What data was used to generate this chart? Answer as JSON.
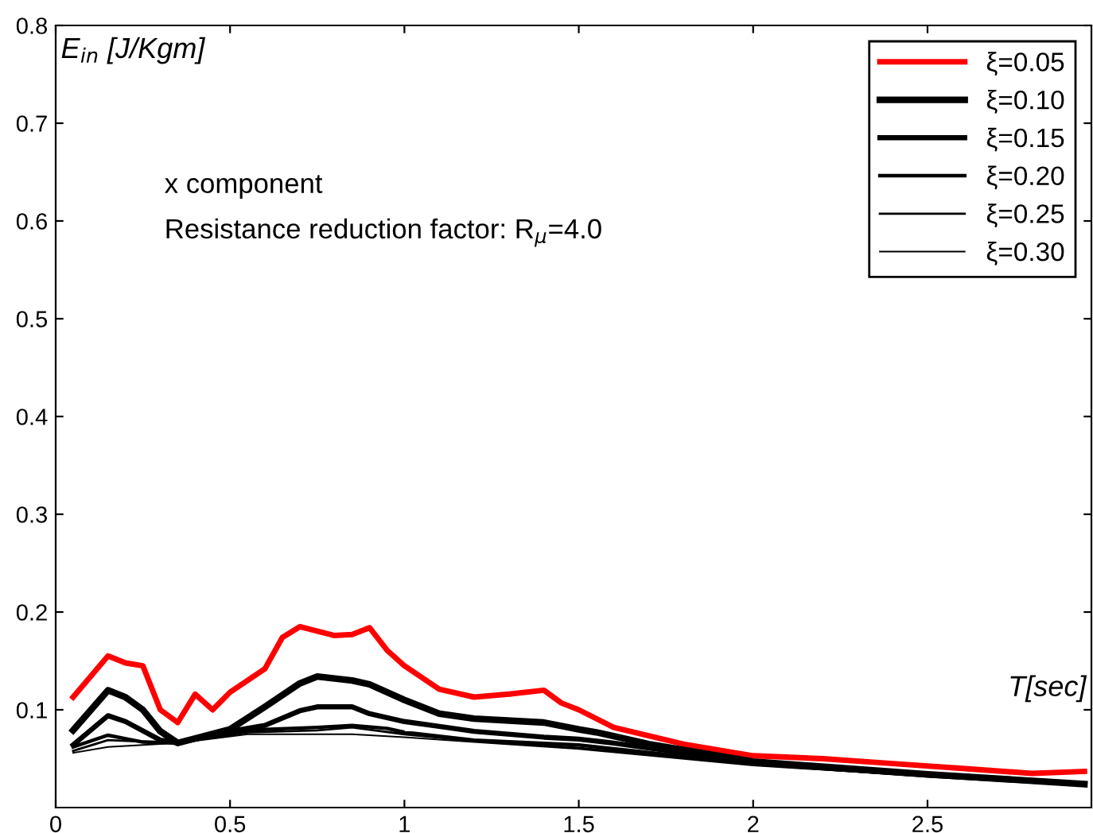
{
  "chart_data": {
    "type": "line",
    "xlabel": "T[sec]",
    "ylabel": "E$_{in}$ [J/Kgm]",
    "annotations": [
      "x component",
      "Resistance reduction factor: R$_{μ}$=4.0"
    ],
    "xlim": [
      0,
      2.97
    ],
    "ylim": [
      0,
      0.8
    ],
    "xticks": [
      0,
      0.5,
      1,
      1.5,
      2,
      2.5
    ],
    "yticks": [
      0.1,
      0.2,
      0.3,
      0.4,
      0.5,
      0.6,
      0.7,
      0.8
    ],
    "grid": false,
    "legend": "top right",
    "marker": "none",
    "line_style": "solid",
    "series": [
      {
        "name": "ξ=0.05",
        "color": "#ff0000",
        "x": [
          0.05,
          0.15,
          0.2,
          0.25,
          0.3,
          0.35,
          0.4,
          0.45,
          0.5,
          0.6,
          0.65,
          0.7,
          0.8,
          0.85,
          0.9,
          0.95,
          1.0,
          1.1,
          1.2,
          1.3,
          1.4,
          1.45,
          1.5,
          1.6,
          1.8,
          2.0,
          2.2,
          2.4,
          2.6,
          2.8,
          2.95
        ],
        "values": [
          0.113,
          0.155,
          0.148,
          0.145,
          0.1,
          0.087,
          0.116,
          0.1,
          0.118,
          0.142,
          0.174,
          0.185,
          0.176,
          0.177,
          0.184,
          0.161,
          0.145,
          0.121,
          0.113,
          0.116,
          0.12,
          0.107,
          0.1,
          0.082,
          0.065,
          0.053,
          0.05,
          0.045,
          0.04,
          0.035,
          0.037
        ]
      },
      {
        "name": "ξ=0.10",
        "color": "#000000",
        "x": [
          0.05,
          0.15,
          0.2,
          0.25,
          0.3,
          0.35,
          0.5,
          0.6,
          0.7,
          0.75,
          0.85,
          0.9,
          1.0,
          1.1,
          1.2,
          1.4,
          1.5,
          1.55,
          1.7,
          2.0,
          2.5,
          2.95
        ],
        "values": [
          0.079,
          0.12,
          0.113,
          0.1,
          0.078,
          0.066,
          0.08,
          0.103,
          0.127,
          0.134,
          0.13,
          0.126,
          0.11,
          0.096,
          0.091,
          0.087,
          0.08,
          0.077,
          0.065,
          0.047,
          0.034,
          0.024
        ]
      },
      {
        "name": "ξ=0.15",
        "color": "#000000",
        "x": [
          0.05,
          0.15,
          0.2,
          0.3,
          0.35,
          0.5,
          0.6,
          0.7,
          0.75,
          0.85,
          0.9,
          1.0,
          1.1,
          1.2,
          1.4,
          1.5,
          1.6,
          2.0,
          2.5,
          2.95
        ],
        "values": [
          0.064,
          0.094,
          0.088,
          0.069,
          0.066,
          0.078,
          0.084,
          0.099,
          0.103,
          0.103,
          0.096,
          0.088,
          0.083,
          0.078,
          0.072,
          0.07,
          0.066,
          0.046,
          0.033,
          0.024
        ]
      },
      {
        "name": "ξ=0.20",
        "color": "#000000",
        "x": [
          0.05,
          0.15,
          0.25,
          0.35,
          0.5,
          0.6,
          0.75,
          0.85,
          0.95,
          1.0,
          1.2,
          1.5,
          2.0,
          2.5,
          2.95
        ],
        "values": [
          0.062,
          0.074,
          0.067,
          0.066,
          0.076,
          0.08,
          0.082,
          0.084,
          0.081,
          0.077,
          0.069,
          0.064,
          0.045,
          0.033,
          0.024
        ]
      },
      {
        "name": "ξ=0.25",
        "color": "#000000",
        "x": [
          0.05,
          0.15,
          0.35,
          0.55,
          0.75,
          0.85,
          1.0,
          1.2,
          1.5,
          2.0,
          2.5,
          2.95
        ],
        "values": [
          0.058,
          0.069,
          0.066,
          0.077,
          0.079,
          0.082,
          0.075,
          0.068,
          0.061,
          0.044,
          0.032,
          0.023
        ]
      },
      {
        "name": "ξ=0.30",
        "color": "#000000",
        "x": [
          0.05,
          0.15,
          0.35,
          0.55,
          0.85,
          1.0,
          1.2,
          1.5,
          2.0,
          2.5,
          2.95
        ],
        "values": [
          0.056,
          0.062,
          0.066,
          0.075,
          0.075,
          0.072,
          0.067,
          0.06,
          0.043,
          0.032,
          0.023
        ]
      }
    ]
  }
}
